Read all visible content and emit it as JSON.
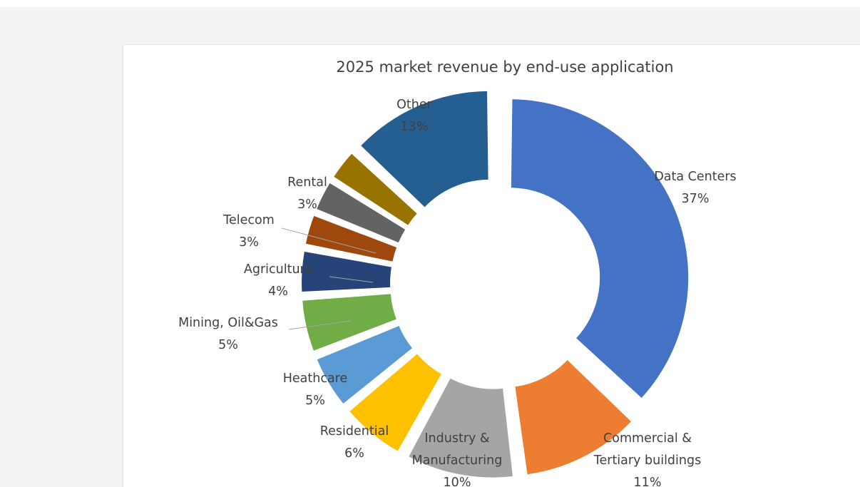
{
  "chart_data": {
    "type": "donut",
    "title": "2025 market revenue by end-use application",
    "slices": [
      {
        "name": "Data Centers",
        "value": 37,
        "label_lines": [
          "Data Centers",
          "37%"
        ],
        "color": "#4472c4"
      },
      {
        "name": "Commercial & Tertiary buildings",
        "value": 11,
        "label_lines": [
          "Commercial &",
          "Tertiary buildings",
          "11%"
        ],
        "color": "#ed7d31"
      },
      {
        "name": "Industry & Manufacturing",
        "value": 10,
        "label_lines": [
          "Industry &",
          "Manufacturing",
          "10%"
        ],
        "color": "#a5a5a5"
      },
      {
        "name": "Residential",
        "value": 6,
        "label_lines": [
          "Residential",
          "6%"
        ],
        "color": "#ffc000"
      },
      {
        "name": "Heathcare",
        "value": 5,
        "label_lines": [
          "Heathcare",
          "5%"
        ],
        "color": "#5b9bd5"
      },
      {
        "name": "Mining, Oil&Gas",
        "value": 5,
        "label_lines": [
          "Mining, Oil&Gas",
          "5%"
        ],
        "color": "#70ad47"
      },
      {
        "name": "Agriculture",
        "value": 4,
        "label_lines": [
          "Agriculture",
          "4%"
        ],
        "color": "#264478"
      },
      {
        "name": "Telecom",
        "value": 3,
        "label_lines": [
          "Telecom",
          "3%"
        ],
        "color": "#9e480e"
      },
      {
        "name": "Rental",
        "value": 3,
        "label_lines": [
          "Rental",
          "3%"
        ],
        "color": "#636363"
      },
      {
        "name": "",
        "value": 3,
        "label_lines": [],
        "color": "#997300"
      },
      {
        "name": "Other",
        "value": 13,
        "label_lines": [
          "Other",
          "13%"
        ],
        "color": "#255e91"
      }
    ]
  }
}
